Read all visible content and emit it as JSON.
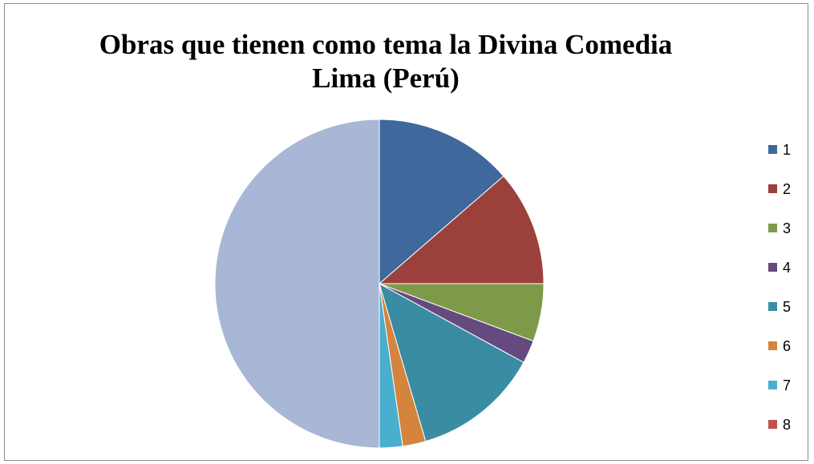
{
  "chart_data": {
    "type": "pie",
    "title_lines": [
      "Obras que tienen como tema la Divina Comedia",
      "Lima (Perú)"
    ],
    "categories": [
      "1",
      "2",
      "3",
      "4",
      "5",
      "6",
      "7",
      "8",
      ""
    ],
    "values": [
      6,
      5,
      2.5,
      1,
      5.5,
      1,
      1,
      0,
      22
    ],
    "colors": [
      "#3f689c",
      "#9c403c",
      "#7e9a48",
      "#644a7e",
      "#3a8ca2",
      "#d4843c",
      "#4aaecf",
      "#c0504d",
      "#a9b7d6"
    ],
    "start_angle_deg": 0,
    "direction": "clockwise",
    "legend": {
      "position": "right",
      "entries": [
        {
          "label": "1",
          "color": "#3f689c"
        },
        {
          "label": "2",
          "color": "#9c403c"
        },
        {
          "label": "3",
          "color": "#7e9a48"
        },
        {
          "label": "4",
          "color": "#644a7e"
        },
        {
          "label": "5",
          "color": "#3a8ca2"
        },
        {
          "label": "6",
          "color": "#d4843c"
        },
        {
          "label": "7",
          "color": "#4aaecf"
        },
        {
          "label": "8",
          "color": "#c0504d"
        }
      ]
    }
  }
}
